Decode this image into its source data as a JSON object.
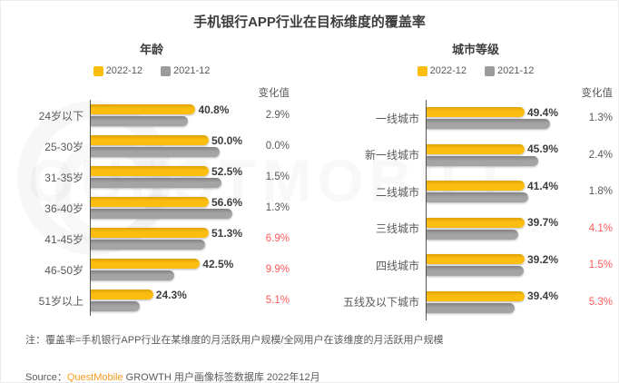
{
  "page": {
    "title": "手机银行APP行业在目标维度的覆盖率",
    "note": "注：覆盖率=手机银行APP行业在某维度的月活跃用户规模/全网用户在该维度的月活跃用户规模",
    "source_label": "Source：",
    "source_brand": "QuestMobile",
    "source_rest": " GROWTH 用户画像标签数据库 2022年12月",
    "watermark": "QUESTMOBILE"
  },
  "colors": {
    "bar_2022": "#fcbd11",
    "bar_2021": "#9b9b9b",
    "change_highlight": "#ff5a5a",
    "text_gray": "#595959",
    "brand_orange": "#f89a1c"
  },
  "chart_data": [
    {
      "type": "bar",
      "orientation": "horizontal",
      "title": "年龄",
      "change_header": "变化值",
      "legend": [
        "2022-12",
        "2021-12"
      ],
      "xlim": [
        0,
        60
      ],
      "categories": [
        "24岁以下",
        "25-30岁",
        "31-35岁",
        "36-40岁",
        "41-45岁",
        "46-50岁",
        "51岁以上"
      ],
      "series": [
        {
          "name": "2022-12",
          "color": "#fcbd11",
          "values": [
            40.8,
            50.0,
            52.5,
            56.6,
            51.3,
            42.5,
            24.3
          ]
        },
        {
          "name": "2021-12",
          "color": "#9b9b9b",
          "values": [
            37.9,
            50.0,
            51.0,
            55.3,
            44.4,
            32.6,
            19.2
          ]
        }
      ],
      "value_labels": [
        "40.8%",
        "50.0%",
        "52.5%",
        "56.6%",
        "51.3%",
        "42.5%",
        "24.3%"
      ],
      "changes": [
        {
          "label": "2.9%",
          "red": false
        },
        {
          "label": "0.0%",
          "red": false
        },
        {
          "label": "1.5%",
          "red": false
        },
        {
          "label": "1.3%",
          "red": false
        },
        {
          "label": "6.9%",
          "red": true
        },
        {
          "label": "9.9%",
          "red": true
        },
        {
          "label": "5.1%",
          "red": true
        }
      ]
    },
    {
      "type": "bar",
      "orientation": "horizontal",
      "title": "城市等级",
      "change_header": "变化值",
      "legend": [
        "2022-12",
        "2021-12"
      ],
      "xlim": [
        0,
        55
      ],
      "categories": [
        "一线城市",
        "新一线城市",
        "二线城市",
        "三线城市",
        "四线城市",
        "五线及以下城市"
      ],
      "series": [
        {
          "name": "2022-12",
          "color": "#fcbd11",
          "values": [
            49.4,
            45.9,
            41.4,
            39.7,
            39.2,
            39.4
          ]
        },
        {
          "name": "2021-12",
          "color": "#9b9b9b",
          "values": [
            48.1,
            43.5,
            39.6,
            35.6,
            37.7,
            34.1
          ]
        }
      ],
      "value_labels": [
        "49.4%",
        "45.9%",
        "41.4%",
        "39.7%",
        "39.2%",
        "39.4%"
      ],
      "changes": [
        {
          "label": "1.3%",
          "red": false
        },
        {
          "label": "2.4%",
          "red": false
        },
        {
          "label": "1.8%",
          "red": false
        },
        {
          "label": "4.1%",
          "red": true
        },
        {
          "label": "1.5%",
          "red": true
        },
        {
          "label": "5.3%",
          "red": true
        }
      ]
    }
  ]
}
